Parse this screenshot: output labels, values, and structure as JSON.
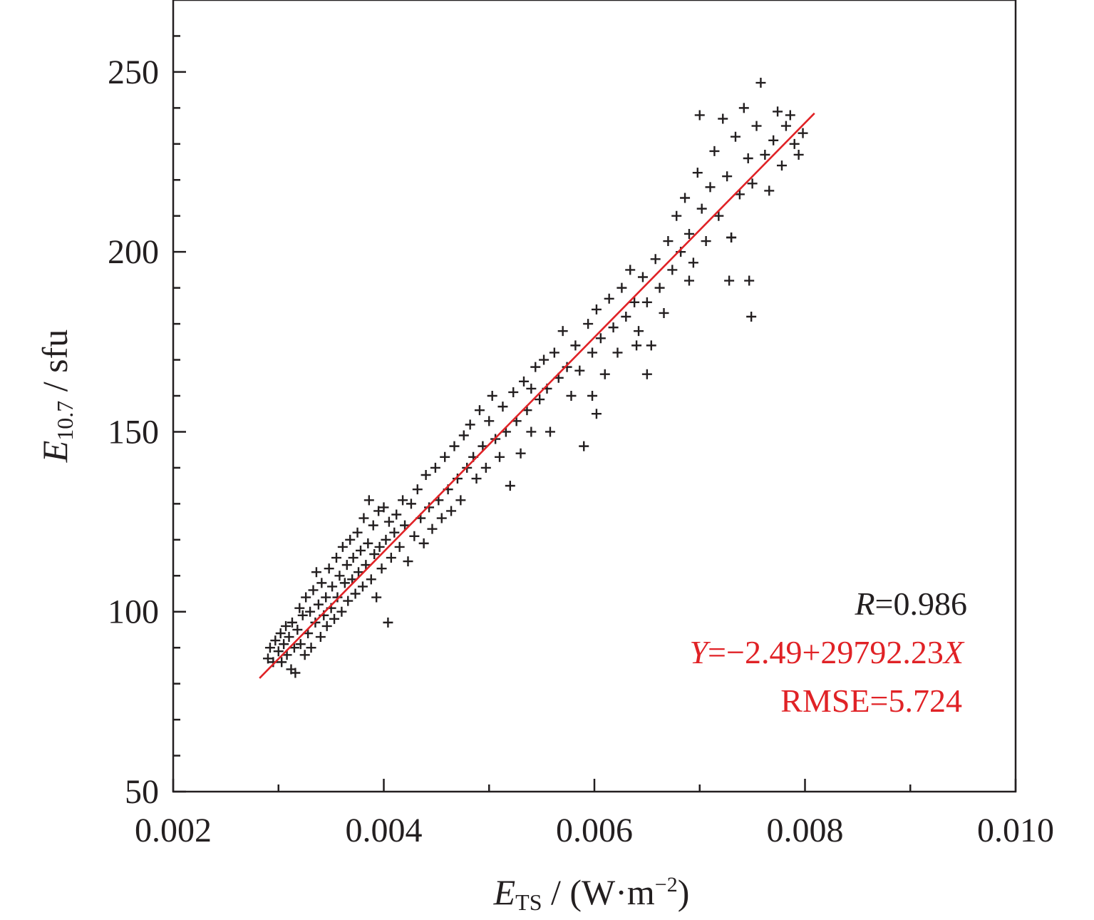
{
  "chart_data": {
    "type": "scatter",
    "title": "",
    "xlabel": {
      "main": "E",
      "sub": "TS",
      "unit_prefix": " / (W·m",
      "unit_exp": "−2",
      "unit_suffix": ")"
    },
    "ylabel": {
      "main": "E",
      "sub": "10.7",
      "unit": " / sfu"
    },
    "xlim": [
      0.002,
      0.01
    ],
    "ylim": [
      50,
      270
    ],
    "xticks": [
      0.002,
      0.004,
      0.006,
      0.008,
      0.01
    ],
    "xtick_labels": [
      "0.002",
      "0.004",
      "0.006",
      "0.008",
      "0.010"
    ],
    "xminor_ticks": [
      0.003,
      0.005,
      0.007,
      0.009
    ],
    "yticks": [
      50,
      100,
      150,
      200,
      250
    ],
    "ytick_labels": [
      "50",
      "100",
      "150",
      "200",
      "250"
    ],
    "yminor_ticks": [
      60,
      70,
      80,
      90,
      110,
      120,
      130,
      140,
      160,
      170,
      180,
      190,
      210,
      220,
      230,
      240,
      260
    ],
    "grid": false,
    "legend": "none",
    "marker": "plus",
    "colors": {
      "points": "#231f20",
      "fit": "#e02226",
      "axis": "#231f20"
    },
    "fit_line": {
      "intercept": -2.49,
      "slope": 29792.23,
      "x_range": [
        0.00282,
        0.00809
      ]
    },
    "annotations": {
      "r_label": "R",
      "r_value": "0.986",
      "eq_y": "Y",
      "eq_body": "−2.49+29792.23",
      "eq_x": "X",
      "rmse_label": "RMSE",
      "rmse_value": "5.724"
    },
    "series": [
      {
        "values_note": "scattered daily points",
        "points": [
          [
            0.0029,
            87
          ],
          [
            0.00292,
            90
          ],
          [
            0.00295,
            86
          ],
          [
            0.00297,
            92
          ],
          [
            0.003,
            89
          ],
          [
            0.00302,
            94
          ],
          [
            0.00303,
            86
          ],
          [
            0.00305,
            91
          ],
          [
            0.00307,
            96
          ],
          [
            0.00308,
            88
          ],
          [
            0.0031,
            93
          ],
          [
            0.00312,
            84
          ],
          [
            0.00313,
            97
          ],
          [
            0.00315,
            90
          ],
          [
            0.00316,
            83
          ],
          [
            0.00318,
            95
          ],
          [
            0.0032,
            101
          ],
          [
            0.00321,
            91
          ],
          [
            0.00323,
            99
          ],
          [
            0.00325,
            88
          ],
          [
            0.00326,
            104
          ],
          [
            0.00328,
            94
          ],
          [
            0.0033,
            100
          ],
          [
            0.00331,
            90
          ],
          [
            0.00333,
            106
          ],
          [
            0.00335,
            97
          ],
          [
            0.00336,
            111
          ],
          [
            0.00338,
            102
          ],
          [
            0.0034,
            93
          ],
          [
            0.00341,
            108
          ],
          [
            0.00343,
            99
          ],
          [
            0.00345,
            104
          ],
          [
            0.00346,
            96
          ],
          [
            0.00348,
            112
          ],
          [
            0.0035,
            101
          ],
          [
            0.00351,
            107
          ],
          [
            0.00353,
            98
          ],
          [
            0.00355,
            115
          ],
          [
            0.00356,
            104
          ],
          [
            0.00358,
            110
          ],
          [
            0.0036,
            100
          ],
          [
            0.00361,
            118
          ],
          [
            0.00363,
            108
          ],
          [
            0.00365,
            113
          ],
          [
            0.00366,
            103
          ],
          [
            0.00368,
            120
          ],
          [
            0.0037,
            109
          ],
          [
            0.00371,
            115
          ],
          [
            0.00373,
            105
          ],
          [
            0.00375,
            122
          ],
          [
            0.00376,
            111
          ],
          [
            0.00378,
            117
          ],
          [
            0.0038,
            107
          ],
          [
            0.00381,
            126
          ],
          [
            0.00383,
            113
          ],
          [
            0.00385,
            119
          ],
          [
            0.00386,
            131
          ],
          [
            0.00388,
            109
          ],
          [
            0.0039,
            124
          ],
          [
            0.00391,
            116
          ],
          [
            0.00393,
            104
          ],
          [
            0.00395,
            128
          ],
          [
            0.00396,
            118
          ],
          [
            0.00398,
            112
          ],
          [
            0.004,
            129
          ],
          [
            0.00402,
            120
          ],
          [
            0.00404,
            97
          ],
          [
            0.00405,
            125
          ],
          [
            0.00407,
            115
          ],
          [
            0.0041,
            122
          ],
          [
            0.00412,
            127
          ],
          [
            0.00415,
            118
          ],
          [
            0.00418,
            131
          ],
          [
            0.0042,
            124
          ],
          [
            0.00423,
            114
          ],
          [
            0.00426,
            130
          ],
          [
            0.00429,
            121
          ],
          [
            0.00432,
            134
          ],
          [
            0.00435,
            126
          ],
          [
            0.00438,
            119
          ],
          [
            0.0044,
            138
          ],
          [
            0.00443,
            129
          ],
          [
            0.00446,
            123
          ],
          [
            0.00449,
            140
          ],
          [
            0.00452,
            131
          ],
          [
            0.00455,
            126
          ],
          [
            0.00458,
            143
          ],
          [
            0.00461,
            134
          ],
          [
            0.00464,
            128
          ],
          [
            0.00467,
            146
          ],
          [
            0.0047,
            137
          ],
          [
            0.00473,
            131
          ],
          [
            0.00476,
            149
          ],
          [
            0.00479,
            140
          ],
          [
            0.00482,
            152
          ],
          [
            0.00485,
            143
          ],
          [
            0.00488,
            137
          ],
          [
            0.00491,
            156
          ],
          [
            0.00494,
            146
          ],
          [
            0.00497,
            140
          ],
          [
            0.005,
            153
          ],
          [
            0.00503,
            160
          ],
          [
            0.00506,
            148
          ],
          [
            0.0051,
            143
          ],
          [
            0.00513,
            157
          ],
          [
            0.00516,
            150
          ],
          [
            0.0052,
            135
          ],
          [
            0.00523,
            161
          ],
          [
            0.00526,
            153
          ],
          [
            0.0053,
            144
          ],
          [
            0.00533,
            164
          ],
          [
            0.00536,
            156
          ],
          [
            0.0054,
            150
          ],
          [
            0.00544,
            168
          ],
          [
            0.00548,
            159
          ],
          [
            0.00552,
            170
          ],
          [
            0.00555,
            162
          ],
          [
            0.00558,
            150
          ],
          [
            0.00562,
            172
          ],
          [
            0.00566,
            165
          ],
          [
            0.0057,
            178
          ],
          [
            0.00574,
            168
          ],
          [
            0.00578,
            160
          ],
          [
            0.00582,
            174
          ],
          [
            0.00586,
            167
          ],
          [
            0.0059,
            146
          ],
          [
            0.00594,
            180
          ],
          [
            0.00598,
            172
          ],
          [
            0.00602,
            184
          ],
          [
            0.00606,
            176
          ],
          [
            0.0061,
            166
          ],
          [
            0.00614,
            187
          ],
          [
            0.00618,
            179
          ],
          [
            0.00622,
            172
          ],
          [
            0.00626,
            190
          ],
          [
            0.0063,
            182
          ],
          [
            0.00634,
            195
          ],
          [
            0.00638,
            186
          ],
          [
            0.00642,
            178
          ],
          [
            0.00646,
            193
          ],
          [
            0.0065,
            186
          ],
          [
            0.00654,
            174
          ],
          [
            0.00658,
            198
          ],
          [
            0.00662,
            190
          ],
          [
            0.00666,
            183
          ],
          [
            0.0067,
            203
          ],
          [
            0.00674,
            195
          ],
          [
            0.00678,
            210
          ],
          [
            0.00682,
            200
          ],
          [
            0.00686,
            215
          ],
          [
            0.0069,
            205
          ],
          [
            0.00694,
            197
          ],
          [
            0.00698,
            222
          ],
          [
            0.007,
            238
          ],
          [
            0.00702,
            212
          ],
          [
            0.00706,
            203
          ],
          [
            0.0071,
            218
          ],
          [
            0.00714,
            228
          ],
          [
            0.00718,
            210
          ],
          [
            0.00722,
            237
          ],
          [
            0.00726,
            221
          ],
          [
            0.0073,
            204
          ],
          [
            0.00734,
            232
          ],
          [
            0.00738,
            216
          ],
          [
            0.00742,
            240
          ],
          [
            0.00746,
            226
          ],
          [
            0.0075,
            219
          ],
          [
            0.00754,
            235
          ],
          [
            0.00758,
            247
          ],
          [
            0.00762,
            227
          ],
          [
            0.00766,
            217
          ],
          [
            0.0077,
            231
          ],
          [
            0.00774,
            239
          ],
          [
            0.00778,
            224
          ],
          [
            0.00782,
            235
          ],
          [
            0.00786,
            238
          ],
          [
            0.0079,
            230
          ],
          [
            0.00794,
            227
          ],
          [
            0.00798,
            233
          ],
          [
            0.00747,
            192
          ],
          [
            0.00749,
            182
          ],
          [
            0.0064,
            174
          ],
          [
            0.00602,
            155
          ],
          [
            0.00598,
            160
          ],
          [
            0.0054,
            162
          ],
          [
            0.0065,
            166
          ],
          [
            0.0069,
            192
          ],
          [
            0.00728,
            192
          ],
          [
            0.0073,
            204
          ]
        ]
      }
    ]
  }
}
